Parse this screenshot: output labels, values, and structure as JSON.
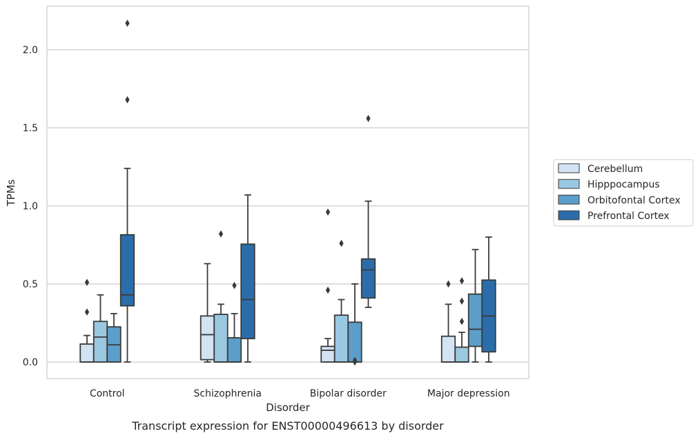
{
  "caption": "Transcript expression for ENST00000496613 by disorder",
  "chart_data": {
    "type": "box",
    "xlabel": "Disorder",
    "ylabel": "TPMs",
    "ylim": [
      -0.1,
      2.28
    ],
    "yticks": [
      "0.0",
      "0.5",
      "1.0",
      "1.5",
      "2.0"
    ],
    "categories": [
      "Control",
      "Schizophrenia",
      "Bipolar disorder",
      "Major depression"
    ],
    "grid": "horizontal",
    "legend_position": "right",
    "series": [
      {
        "name": "Cerebellum",
        "color": "#d2e3f3",
        "boxes": [
          {
            "whislo": 0.0,
            "q1": 0.0,
            "med": 0.0,
            "q3": 0.115,
            "whishi": 0.17,
            "fliers": [
              0.32,
              0.51
            ]
          },
          {
            "whislo": 0.0,
            "q1": 0.015,
            "med": 0.175,
            "q3": 0.295,
            "whishi": 0.63,
            "fliers": []
          },
          {
            "whislo": 0.0,
            "q1": 0.0,
            "med": 0.075,
            "q3": 0.1,
            "whishi": 0.15,
            "fliers": [
              0.46,
              0.96
            ]
          },
          {
            "whislo": 0.0,
            "q1": 0.0,
            "med": 0.0,
            "q3": 0.165,
            "whishi": 0.37,
            "fliers": [
              0.5
            ]
          }
        ]
      },
      {
        "name": "Hipppocampus",
        "color": "#9ac8e0",
        "boxes": [
          {
            "whislo": 0.0,
            "q1": 0.0,
            "med": 0.16,
            "q3": 0.26,
            "whishi": 0.43,
            "fliers": []
          },
          {
            "whislo": 0.0,
            "q1": 0.0,
            "med": 0.0,
            "q3": 0.305,
            "whishi": 0.37,
            "fliers": [
              0.82
            ]
          },
          {
            "whislo": 0.0,
            "q1": 0.0,
            "med": 0.0,
            "q3": 0.3,
            "whishi": 0.4,
            "fliers": [
              0.76
            ]
          },
          {
            "whislo": 0.0,
            "q1": 0.0,
            "med": 0.0,
            "q3": 0.095,
            "whishi": 0.19,
            "fliers": [
              0.26,
              0.39,
              0.52
            ]
          }
        ]
      },
      {
        "name": "Orbitofontal Cortex",
        "color": "#5b9ec9",
        "boxes": [
          {
            "whislo": 0.0,
            "q1": 0.0,
            "med": 0.11,
            "q3": 0.225,
            "whishi": 0.31,
            "fliers": []
          },
          {
            "whislo": 0.0,
            "q1": 0.0,
            "med": 0.0,
            "q3": 0.155,
            "whishi": 0.31,
            "fliers": [
              0.49
            ]
          },
          {
            "whislo": 0.0,
            "q1": 0.0,
            "med": 0.0,
            "q3": 0.255,
            "whishi": 0.5,
            "fliers": [
              0.0,
              0.01
            ]
          },
          {
            "whislo": 0.0,
            "q1": 0.1,
            "med": 0.21,
            "q3": 0.435,
            "whishi": 0.72,
            "fliers": []
          }
        ]
      },
      {
        "name": "Prefrontal Cortex",
        "color": "#2b6daa",
        "boxes": [
          {
            "whislo": 0.0,
            "q1": 0.36,
            "med": 0.43,
            "q3": 0.815,
            "whishi": 1.24,
            "fliers": [
              1.68,
              2.17
            ]
          },
          {
            "whislo": 0.0,
            "q1": 0.15,
            "med": 0.4,
            "q3": 0.755,
            "whishi": 1.07,
            "fliers": []
          },
          {
            "whislo": 0.35,
            "q1": 0.41,
            "med": 0.59,
            "q3": 0.66,
            "whishi": 1.03,
            "fliers": [
              1.56
            ]
          },
          {
            "whislo": 0.0,
            "q1": 0.065,
            "med": 0.295,
            "q3": 0.525,
            "whishi": 0.8,
            "fliers": []
          }
        ]
      }
    ]
  }
}
